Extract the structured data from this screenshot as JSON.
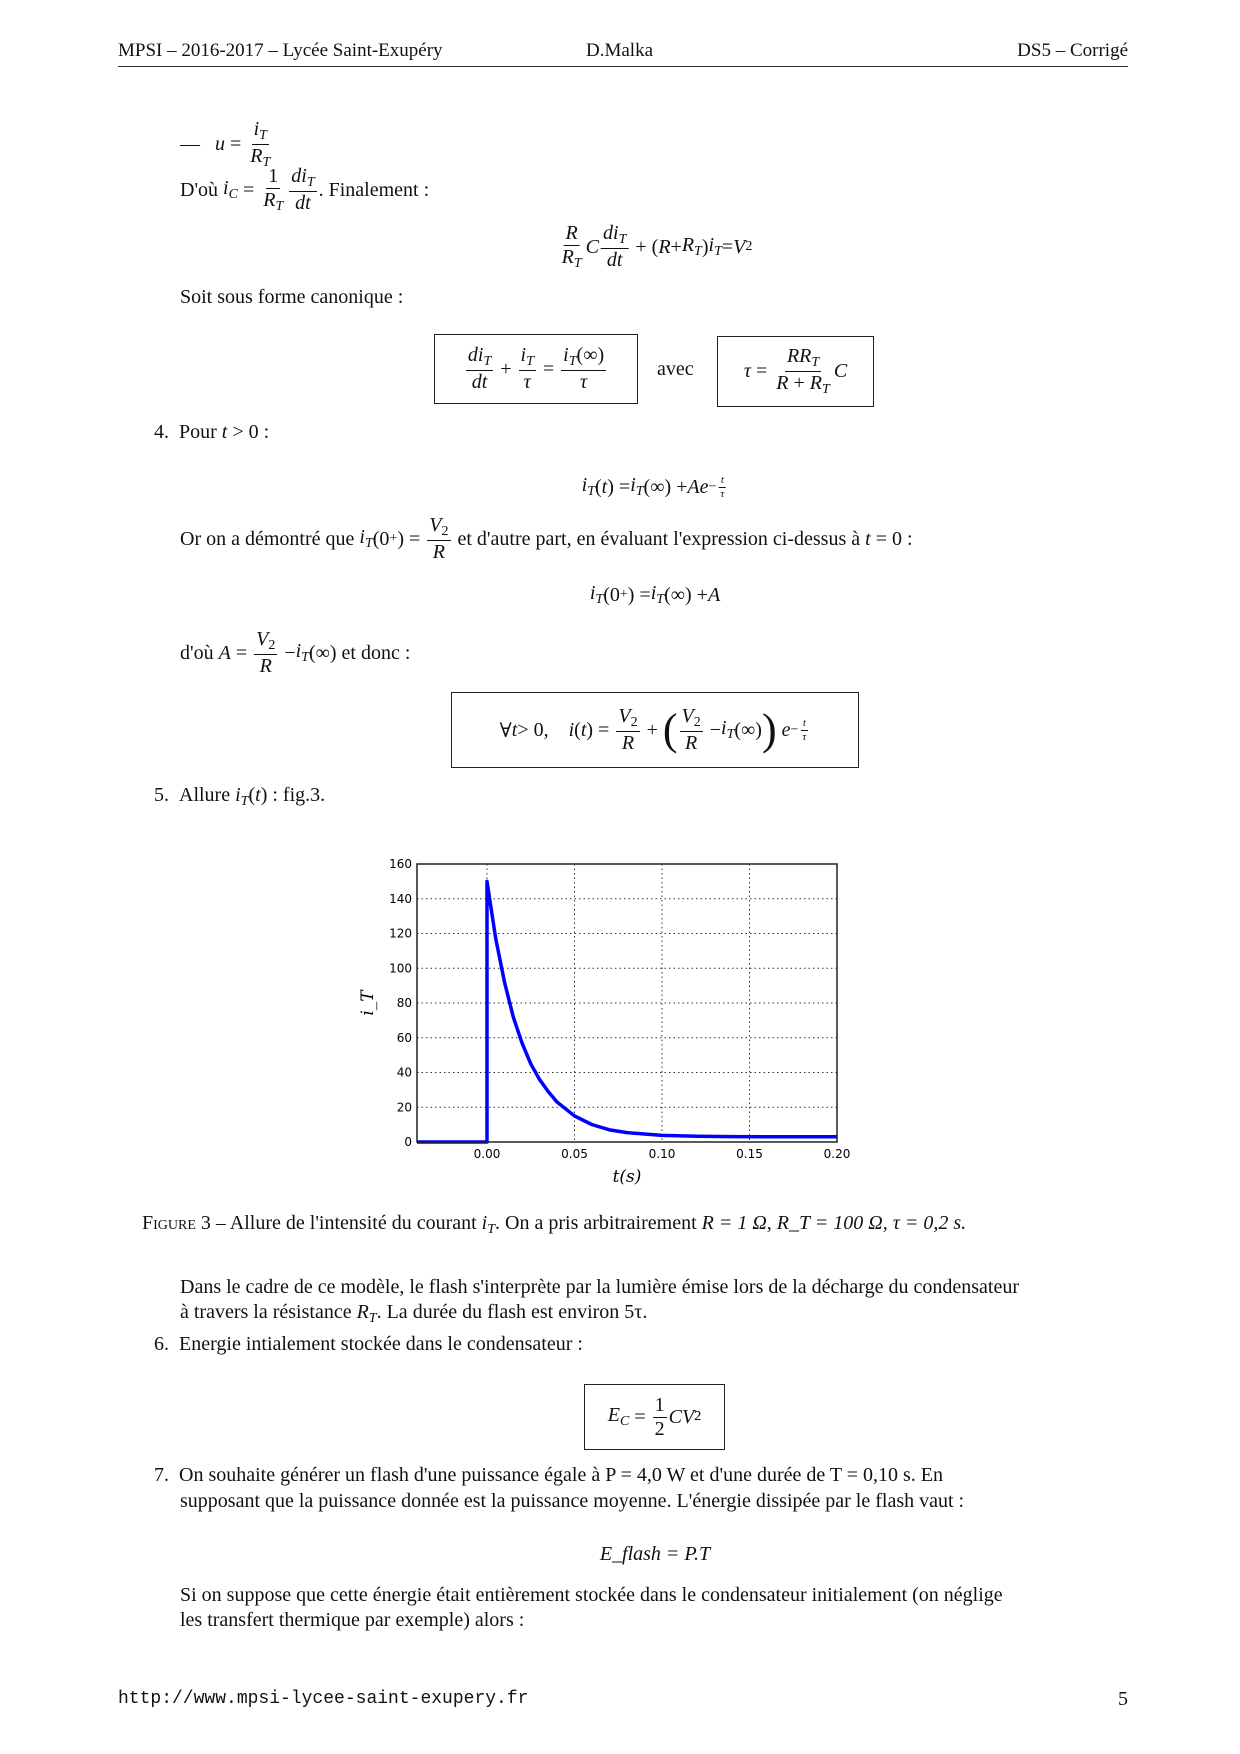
{
  "header": {
    "left": "MPSI – 2016-2017 – Lycée Saint-Exupéry",
    "center": "D.Malka",
    "right": "DS5 – Corrigé"
  },
  "footer": {
    "url": "http://www.mpsi-lycee-saint-exupery.fr",
    "page": "5"
  },
  "content": {
    "dash": "—",
    "dou": "D'où",
    "finalement": ". Finalement :",
    "canonique": "Soit sous forme canonique :",
    "avec": "avec",
    "item4_num": "4.",
    "item4_text": "Pour",
    "or_text": "Or on a démontré que",
    "autre_part": "et d'autre part, en évaluant l'expression ci-dessus à",
    "dou_A": "d'où",
    "et_donc": "et donc :",
    "item5_num": "5.",
    "item5_text": "Allure",
    "item5_tail": ": fig.3.",
    "caption_label": "Figure 3",
    "caption_text": "– Allure de l'intensité du courant",
    "caption_tail": ". On a pris arbitrairement",
    "caption_values": "R = 1 Ω,  R_T = 100 Ω,  τ = 0,2 s.",
    "para_flash_1": "Dans le cadre de ce modèle, le flash s'interprète par la lumière émise lors de la décharge du condensateur",
    "para_flash_2a": "à travers la résistance",
    "para_flash_2b": ". La durée du flash est environ 5τ.",
    "item6_num": "6.",
    "item6_text": "Energie intialement stockée dans le condensateur :",
    "item7_num": "7.",
    "item7_line1": "On souhaite générer un flash d'une puissance égale à P = 4,0 W et d'une durée de T = 0,10 s. En",
    "item7_line2": "supposant que la puissance donnée est la puissance moyenne. L'énergie dissipée par le flash vaut :",
    "eflash": "E_flash = P.T",
    "para_last_1": "Si on suppose que cette énergie était entièrement stockée dans le condensateur initialement (on néglige",
    "para_last_2": "les transfert thermique par exemple) alors :"
  },
  "chart_data": {
    "type": "line",
    "xlabel": "t(s)",
    "ylabel": "i_T",
    "xlim": [
      -0.04,
      0.2
    ],
    "ylim": [
      0,
      160
    ],
    "xticks": [
      "0.00",
      "0.05",
      "0.10",
      "0.15",
      "0.20"
    ],
    "yticks": [
      "0",
      "20",
      "40",
      "60",
      "80",
      "100",
      "120",
      "140",
      "160"
    ],
    "grid": true,
    "line_color": "#0000ff",
    "series": [
      {
        "x": [
          -0.04,
          0.0,
          0.0,
          0.005,
          0.01,
          0.015,
          0.02,
          0.025,
          0.03,
          0.035,
          0.04,
          0.05,
          0.06,
          0.07,
          0.08,
          0.09,
          0.1,
          0.12,
          0.14,
          0.16,
          0.18,
          0.2
        ],
        "y": [
          0,
          0,
          150,
          117,
          92,
          72,
          57,
          45,
          36,
          29,
          23,
          15,
          10,
          7,
          5.4,
          4.6,
          3.8,
          3.3,
          3.1,
          3.0,
          3.0,
          3.0
        ]
      }
    ]
  }
}
